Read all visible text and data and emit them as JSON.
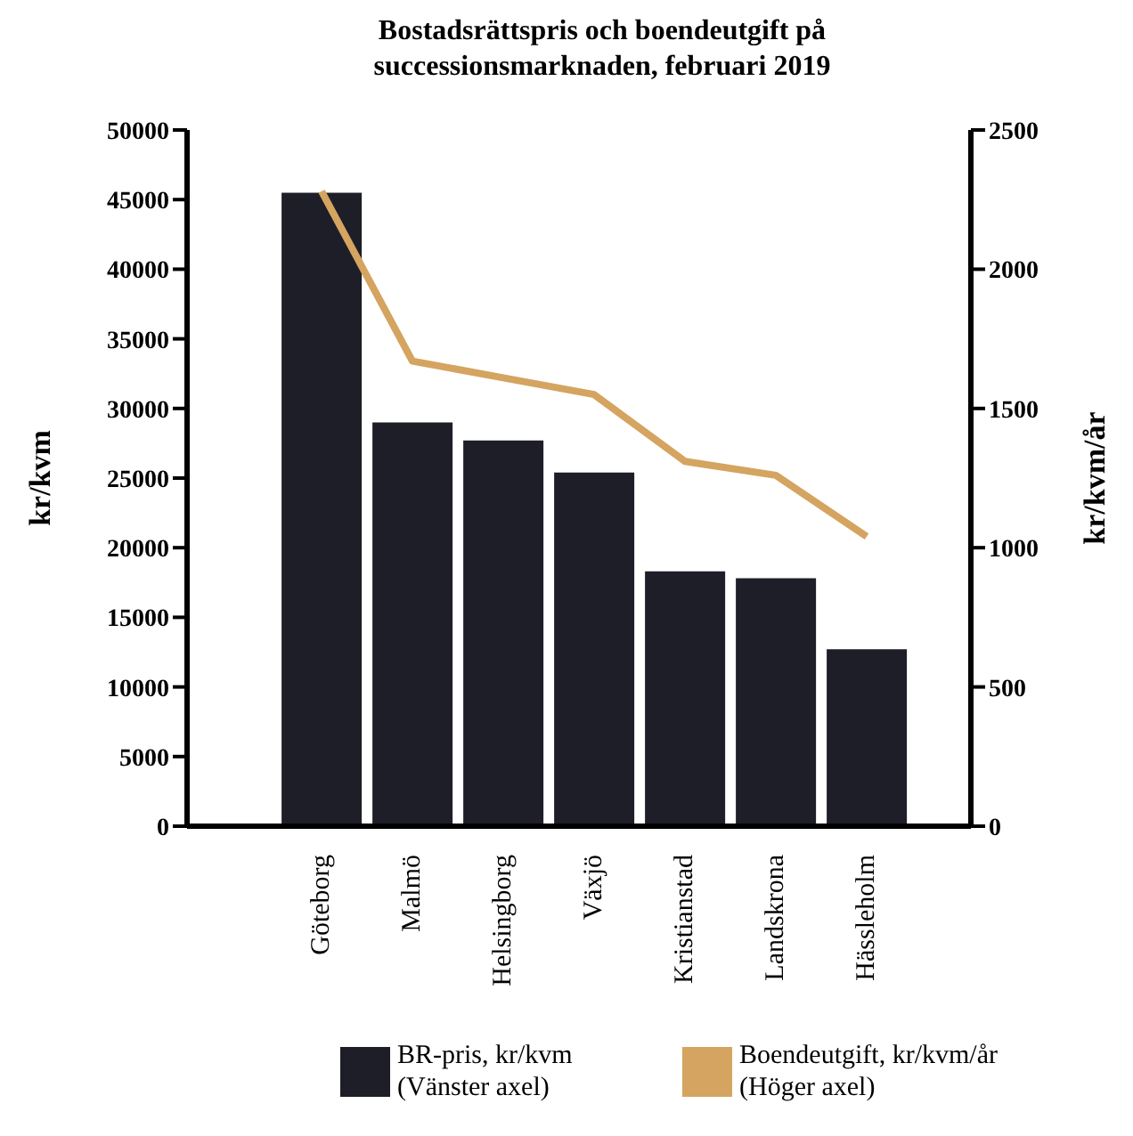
{
  "chart_data": {
    "type": "bar",
    "title": "Bostadsrättspris och boendeutgift på successionsmarknaden, februari 2019",
    "ylabel": "kr/kvm",
    "y2label": "kr/kvm/år",
    "categories": [
      "Göteborg",
      "Malmö",
      "Helsingborg",
      "Växjö",
      "Kristianstad",
      "Landskrona",
      "Hässleholm"
    ],
    "series": [
      {
        "name": "BR-pris, kr/kvm (Vänster axel)",
        "color": "#1e1e28",
        "values": [
          45500,
          29000,
          27700,
          25400,
          18300,
          17800,
          12700
        ]
      },
      {
        "name": "Boendeutgift, kr/kvm/år (Höger axel)",
        "color": "#d4a460",
        "type": "line",
        "axis": "y2",
        "values": [
          2280,
          1670,
          1610,
          1550,
          1310,
          1260,
          1040
        ]
      }
    ],
    "ylim": [
      0,
      50000
    ],
    "yticks": [
      0,
      5000,
      10000,
      15000,
      20000,
      25000,
      30000,
      35000,
      40000,
      45000,
      50000
    ],
    "y2lim": [
      0,
      2500
    ],
    "y2ticks": [
      0,
      500,
      1000,
      1500,
      2000,
      2500
    ],
    "grid": false,
    "legend": "bottom",
    "marker": "none",
    "line_style": "solid"
  }
}
